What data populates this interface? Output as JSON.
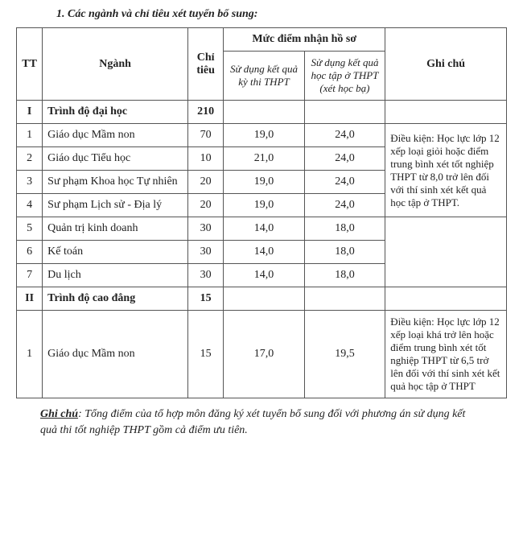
{
  "heading": "1.  Các ngành và chỉ tiêu xét tuyển bổ sung:",
  "header": {
    "tt": "TT",
    "nganh": "Ngành",
    "chitieu": "Chỉ tiêu",
    "score_group": "Mức điểm nhận hồ sơ",
    "score_thpt": "Sử dụng kết quả kỳ thi THPT",
    "score_hocba": "Sử dụng kết quả học tập ở THPT (xét học bạ)",
    "ghichu": "Ghi chú"
  },
  "sections": [
    {
      "index": "I",
      "title": "Trình độ đại học",
      "total": "210"
    },
    {
      "index": "II",
      "title": "Trình độ cao đẳng",
      "total": "15"
    }
  ],
  "rows_dh": [
    {
      "stt": "1",
      "nganh": "Giáo dục Mầm non",
      "chitieu": "70",
      "thpt": "19,0",
      "hocba": "24,0"
    },
    {
      "stt": "2",
      "nganh": "Giáo dục Tiểu học",
      "chitieu": "10",
      "thpt": "21,0",
      "hocba": "24,0"
    },
    {
      "stt": "3",
      "nganh": "Sư phạm Khoa học Tự nhiên",
      "chitieu": "20",
      "thpt": "19,0",
      "hocba": "24,0"
    },
    {
      "stt": "4",
      "nganh": "Sư phạm Lịch sử - Địa lý",
      "chitieu": "20",
      "thpt": "19,0",
      "hocba": "24,0"
    },
    {
      "stt": "5",
      "nganh": "Quản trị kinh doanh",
      "chitieu": "30",
      "thpt": "14,0",
      "hocba": "18,0"
    },
    {
      "stt": "6",
      "nganh": "Kế toán",
      "chitieu": "30",
      "thpt": "14,0",
      "hocba": "18,0"
    },
    {
      "stt": "7",
      "nganh": "Du lịch",
      "chitieu": "30",
      "thpt": "14,0",
      "hocba": "18,0"
    }
  ],
  "rows_cd": [
    {
      "stt": "1",
      "nganh": "Giáo dục Mầm non",
      "chitieu": "15",
      "thpt": "17,0",
      "hocba": "19,5"
    }
  ],
  "note_dh": "Điều kiện: Học lực lớp 12 xếp loại giỏi hoặc điểm trung bình xét tốt nghiệp THPT từ 8,0 trở lên đối với thí sinh xét kết quả học tập ở THPT.",
  "note_cd": "Điều kiện: Học lực lớp 12 xếp loại khá trở lên hoặc điểm trung bình xét tốt nghiệp THPT từ 6,5 trở lên đối với thí sinh xét kết quả học tập ở THPT",
  "footnote": {
    "label": "Ghi chú",
    "body": ": Tổng điểm của tổ hợp môn đăng ký xét tuyển bổ sung đối với phương án sử dụng kết quả thi tốt nghiệp THPT gồm cả điểm ưu tiên."
  },
  "colors": {
    "text": "#222222",
    "border": "#555555",
    "background": "#ffffff"
  },
  "fonts": {
    "family": "Times New Roman",
    "body_size_pt": 11,
    "heading_italic_bold": true
  }
}
